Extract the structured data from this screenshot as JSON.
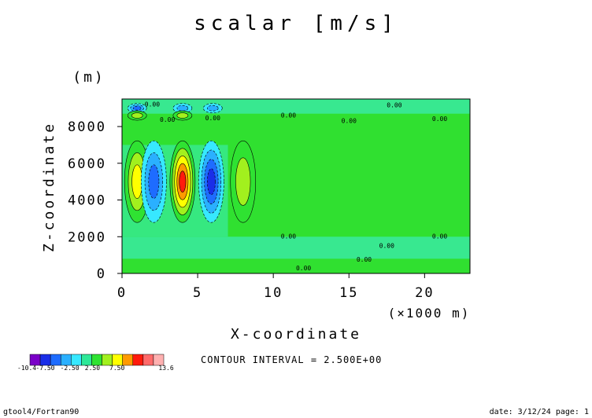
{
  "chart_data": {
    "type": "heatmap",
    "title": "scalar [m/s]",
    "xlabel": "X-coordinate",
    "ylabel": "Z-coordinate",
    "x_unit": "(×1000 m)",
    "y_unit": "(m)",
    "xlim": [
      0,
      23
    ],
    "ylim": [
      0,
      9500
    ],
    "x_ticks": [
      "0",
      "5",
      "10",
      "15",
      "20"
    ],
    "y_ticks": [
      "0",
      "2000",
      "4000",
      "6000",
      "8000"
    ],
    "contour_interval_text": "CONTOUR INTERVAL = 2.500E+00",
    "contour_label": "0.00",
    "colorbar": {
      "tick_labels": [
        "-10.4",
        "-7.50",
        "-2.50",
        "2.50",
        "7.50",
        "13.6"
      ],
      "colors": [
        "#7a00c8",
        "#1a2ee8",
        "#1e6cff",
        "#2ab0ff",
        "#37e8ff",
        "#2ee898",
        "#2fe232",
        "#a2f01e",
        "#ffff00",
        "#ff9a00",
        "#ff1a0c",
        "#ff6a6a",
        "#ffb0b0"
      ]
    },
    "cells": [
      {
        "x": 1.0,
        "z": 5000,
        "value": 7.5
      },
      {
        "x": 2.1,
        "z": 5000,
        "value": -7.5
      },
      {
        "x": 4.0,
        "z": 5000,
        "value": 12.5
      },
      {
        "x": 5.9,
        "z": 5000,
        "value": -10.0
      },
      {
        "x": 8.0,
        "z": 5000,
        "value": 5.0
      },
      {
        "x": 1.0,
        "z": 9000,
        "value": -7.5
      },
      {
        "x": 4.0,
        "z": 9000,
        "value": -5.0
      },
      {
        "x": 6.0,
        "z": 9000,
        "value": -5.0
      },
      {
        "x": 1.0,
        "z": 8600,
        "value": 5.0
      },
      {
        "x": 4.0,
        "z": 8600,
        "value": 5.0
      }
    ]
  },
  "footer_left": "gtool4/Fortran90",
  "footer_right": "date: 3/12/24 page: 1"
}
